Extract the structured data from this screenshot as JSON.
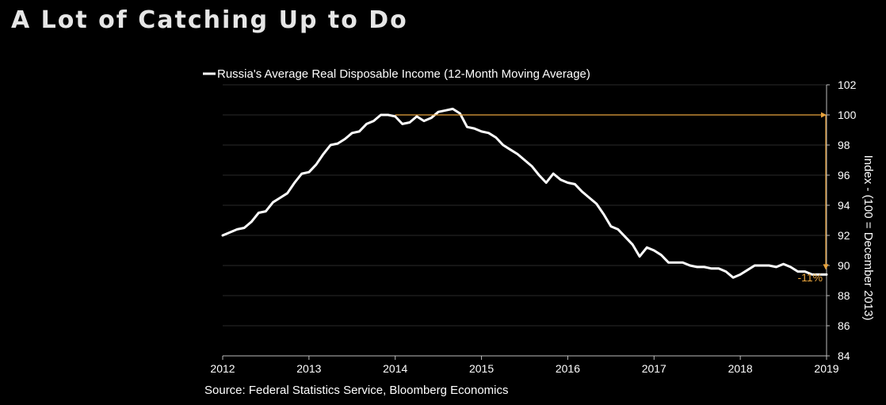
{
  "chart_data": {
    "type": "line",
    "title": "A Lot of Catching Up to Do",
    "ylabel": "Index - (100 = December 2013)",
    "source": "Source: Federal Statistics Service, Bloomberg Economics",
    "xlim": [
      2012,
      2019
    ],
    "ylim": [
      84,
      102
    ],
    "x_ticks": [
      2012,
      2013,
      2014,
      2015,
      2016,
      2017,
      2018,
      2019
    ],
    "x_tick_labels": [
      "2012",
      "2013",
      "2014",
      "2015",
      "2016",
      "2017",
      "2018",
      "2019"
    ],
    "y_ticks": [
      84,
      86,
      88,
      90,
      92,
      94,
      96,
      98,
      100,
      102
    ],
    "y_tick_labels": [
      "84",
      "86",
      "88",
      "90",
      "92",
      "94",
      "96",
      "98",
      "100",
      "102"
    ],
    "y_axis_side": "right",
    "grid": "horizontal",
    "legend_position": "top-left",
    "series": [
      {
        "name": "Russia's Average Real Disposable Income (12-Month Moving Average)",
        "color": "#ffffff",
        "x": [
          2012.0,
          2012.083,
          2012.167,
          2012.25,
          2012.333,
          2012.417,
          2012.5,
          2012.583,
          2012.667,
          2012.75,
          2012.833,
          2012.917,
          2013.0,
          2013.083,
          2013.167,
          2013.25,
          2013.333,
          2013.417,
          2013.5,
          2013.583,
          2013.667,
          2013.75,
          2013.833,
          2013.917,
          2014.0,
          2014.083,
          2014.167,
          2014.25,
          2014.333,
          2014.417,
          2014.5,
          2014.583,
          2014.667,
          2014.75,
          2014.833,
          2014.917,
          2015.0,
          2015.083,
          2015.167,
          2015.25,
          2015.333,
          2015.417,
          2015.5,
          2015.583,
          2015.667,
          2015.75,
          2015.833,
          2015.917,
          2016.0,
          2016.083,
          2016.167,
          2016.25,
          2016.333,
          2016.417,
          2016.5,
          2016.583,
          2016.667,
          2016.75,
          2016.833,
          2016.917,
          2017.0,
          2017.083,
          2017.167,
          2017.25,
          2017.333,
          2017.417,
          2017.5,
          2017.583,
          2017.667,
          2017.75,
          2017.833,
          2017.917,
          2018.0,
          2018.083,
          2018.167,
          2018.25,
          2018.333,
          2018.417,
          2018.5,
          2018.583,
          2018.667,
          2018.75,
          2018.833,
          2018.917,
          2019.0
        ],
        "y": [
          92.0,
          92.2,
          92.4,
          92.5,
          92.9,
          93.5,
          93.6,
          94.2,
          94.5,
          94.8,
          95.5,
          96.1,
          96.2,
          96.7,
          97.4,
          98.0,
          98.1,
          98.4,
          98.8,
          98.9,
          99.4,
          99.6,
          100.0,
          100.0,
          99.9,
          99.4,
          99.5,
          99.9,
          99.6,
          99.8,
          100.2,
          100.3,
          100.4,
          100.1,
          99.2,
          99.1,
          98.9,
          98.8,
          98.5,
          98.0,
          97.7,
          97.4,
          97.0,
          96.6,
          96.0,
          95.5,
          96.1,
          95.7,
          95.5,
          95.4,
          94.9,
          94.5,
          94.1,
          93.4,
          92.6,
          92.4,
          91.9,
          91.4,
          90.6,
          91.2,
          91.0,
          90.7,
          90.2,
          90.2,
          90.2,
          90.0,
          89.9,
          89.9,
          89.8,
          89.8,
          89.6,
          89.2,
          89.4,
          89.7,
          90.0,
          90.0,
          90.0,
          89.9,
          90.1,
          89.9,
          89.6,
          89.6,
          89.4,
          89.4,
          89.4
        ]
      }
    ],
    "annotations": [
      {
        "type": "reference_line",
        "y": 100,
        "from_x": 2014.0,
        "to_x": 2019.0,
        "color": "#e8a33c"
      },
      {
        "type": "drop_arrow",
        "x": 2019.0,
        "from_y": 100,
        "to_y": 89.4,
        "color": "#e8a33c"
      },
      {
        "type": "label",
        "text": "-11%",
        "x": 2018.9,
        "y": 89.0,
        "color": "#e8a33c"
      }
    ]
  }
}
